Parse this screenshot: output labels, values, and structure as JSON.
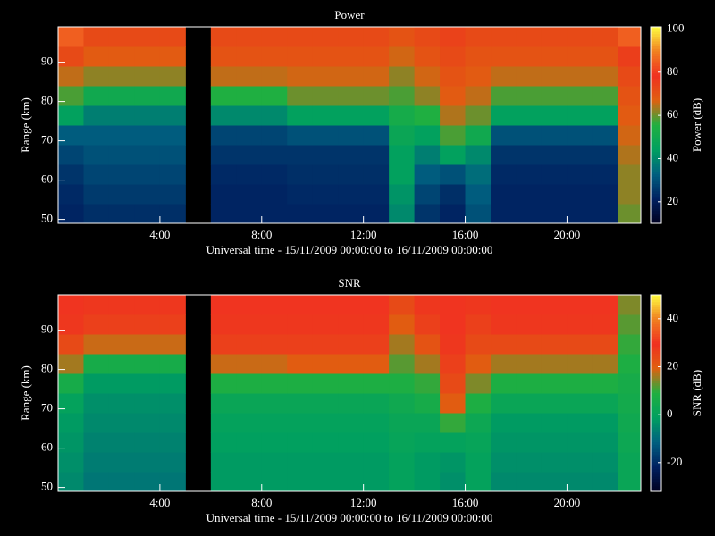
{
  "chart_data": [
    {
      "type": "heatmap",
      "title": "Power",
      "xlabel": "Universal time - 15/11/2009 00:00:00 to 16/11/2009 00:00:00",
      "ylabel": "Range (km)",
      "colorbar_label": "Power (dB)",
      "x": [
        0,
        1,
        2,
        3,
        4,
        5,
        6,
        7,
        8,
        9,
        10,
        11,
        12,
        13,
        14,
        15,
        16,
        17,
        18,
        19,
        20,
        21,
        22,
        22.9
      ],
      "y": [
        49,
        54,
        59,
        64,
        69,
        74,
        79,
        84,
        89,
        94,
        99
      ],
      "xlim": [
        0,
        22.9
      ],
      "ylim": [
        49,
        99
      ],
      "xticks": [
        {
          "value": 4,
          "label": "4:00"
        },
        {
          "value": 8,
          "label": "8:00"
        },
        {
          "value": 12,
          "label": "12:00"
        },
        {
          "value": 16,
          "label": "16:00"
        },
        {
          "value": 20,
          "label": "20:00"
        }
      ],
      "yticks": [
        50,
        60,
        70,
        80,
        90
      ],
      "clim": [
        10,
        101
      ],
      "cticks": [
        20,
        40,
        60,
        80,
        100
      ],
      "colormap": [
        "#000020",
        "#002060",
        "#006080",
        "#00a060",
        "#20b040",
        "#e06010",
        "#f03020",
        "#f08020",
        "#ffff40"
      ],
      "z": [
        [
          22,
          24,
          24,
          24,
          24,
          null,
          22,
          22,
          22,
          22,
          22,
          22,
          22,
          40,
          25,
          22,
          30,
          22,
          22,
          22,
          22,
          22,
          60
        ],
        [
          23,
          26,
          26,
          26,
          26,
          null,
          22,
          22,
          22,
          23,
          23,
          23,
          23,
          42,
          28,
          24,
          32,
          22,
          22,
          22,
          22,
          22,
          62
        ],
        [
          25,
          28,
          28,
          28,
          28,
          null,
          23,
          23,
          23,
          24,
          24,
          24,
          24,
          45,
          32,
          30,
          35,
          23,
          23,
          23,
          23,
          23,
          62
        ],
        [
          28,
          30,
          30,
          30,
          30,
          null,
          25,
          25,
          25,
          25,
          25,
          25,
          25,
          45,
          38,
          45,
          40,
          25,
          25,
          25,
          25,
          25,
          64
        ],
        [
          32,
          32,
          32,
          32,
          32,
          null,
          28,
          28,
          28,
          30,
          30,
          30,
          30,
          48,
          45,
          58,
          50,
          30,
          30,
          30,
          30,
          30,
          66
        ],
        [
          45,
          38,
          38,
          38,
          38,
          null,
          40,
          40,
          40,
          45,
          45,
          45,
          45,
          52,
          55,
          64,
          60,
          45,
          45,
          45,
          45,
          45,
          68
        ],
        [
          58,
          50,
          50,
          50,
          50,
          null,
          55,
          55,
          55,
          60,
          60,
          60,
          60,
          58,
          62,
          68,
          65,
          58,
          58,
          58,
          58,
          58,
          70
        ],
        [
          65,
          62,
          62,
          62,
          62,
          null,
          65,
          65,
          65,
          66,
          66,
          66,
          66,
          62,
          66,
          70,
          68,
          65,
          65,
          65,
          65,
          65,
          72
        ],
        [
          72,
          68,
          68,
          68,
          68,
          null,
          70,
          70,
          70,
          70,
          70,
          70,
          70,
          66,
          70,
          72,
          70,
          70,
          70,
          70,
          70,
          70,
          75
        ],
        [
          85,
          72,
          72,
          72,
          72,
          null,
          72,
          72,
          72,
          72,
          72,
          72,
          72,
          70,
          72,
          74,
          72,
          72,
          72,
          72,
          72,
          72,
          85
        ]
      ]
    },
    {
      "type": "heatmap",
      "title": "SNR",
      "xlabel": "Universal time - 15/11/2009 00:00:00 to 16/11/2009 00:00:00",
      "ylabel": "Range (km)",
      "colorbar_label": "SNR (dB)",
      "x": [
        0,
        1,
        2,
        3,
        4,
        5,
        6,
        7,
        8,
        9,
        10,
        11,
        12,
        13,
        14,
        15,
        16,
        17,
        18,
        19,
        20,
        21,
        22,
        22.9
      ],
      "y": [
        49,
        54,
        59,
        64,
        69,
        74,
        79,
        84,
        89,
        94,
        99
      ],
      "xlim": [
        0,
        22.9
      ],
      "ylim": [
        49,
        99
      ],
      "xticks": [
        {
          "value": 4,
          "label": "4:00"
        },
        {
          "value": 8,
          "label": "8:00"
        },
        {
          "value": 12,
          "label": "12:00"
        },
        {
          "value": 16,
          "label": "16:00"
        },
        {
          "value": 20,
          "label": "20:00"
        }
      ],
      "yticks": [
        50,
        60,
        70,
        80,
        90
      ],
      "clim": [
        -32,
        50
      ],
      "cticks": [
        -20,
        0,
        20,
        40
      ],
      "colormap": [
        "#000020",
        "#002060",
        "#006080",
        "#00a060",
        "#20b040",
        "#e06010",
        "#f03020",
        "#f08020",
        "#ffff40"
      ],
      "z": [
        [
          -5,
          -8,
          -8,
          -8,
          -8,
          null,
          -2,
          -2,
          -2,
          -2,
          -2,
          -2,
          -2,
          0,
          -2,
          -4,
          0,
          -5,
          -5,
          -5,
          -5,
          -5,
          2
        ],
        [
          -4,
          -7,
          -7,
          -7,
          -7,
          null,
          -2,
          -2,
          -2,
          -2,
          -2,
          -2,
          -2,
          0,
          -2,
          -3,
          0,
          -4,
          -4,
          -4,
          -4,
          -4,
          2
        ],
        [
          -3,
          -6,
          -6,
          -6,
          -6,
          null,
          -1,
          -1,
          -1,
          -1,
          -1,
          -1,
          -1,
          1,
          0,
          0,
          1,
          -3,
          -3,
          -3,
          -3,
          -3,
          3
        ],
        [
          -2,
          -5,
          -5,
          -5,
          -5,
          null,
          0,
          0,
          0,
          0,
          0,
          0,
          0,
          2,
          2,
          10,
          3,
          -2,
          -2,
          -2,
          -2,
          -2,
          4
        ],
        [
          0,
          -4,
          -4,
          -4,
          -4,
          null,
          2,
          2,
          2,
          2,
          2,
          2,
          2,
          4,
          6,
          20,
          8,
          2,
          2,
          2,
          2,
          2,
          5
        ],
        [
          6,
          -2,
          -2,
          -2,
          -2,
          null,
          8,
          8,
          8,
          8,
          8,
          8,
          8,
          8,
          10,
          24,
          14,
          8,
          8,
          8,
          8,
          8,
          6
        ],
        [
          16,
          6,
          6,
          6,
          6,
          null,
          18,
          18,
          18,
          20,
          20,
          20,
          20,
          12,
          16,
          26,
          20,
          16,
          16,
          16,
          16,
          16,
          8
        ],
        [
          24,
          18,
          18,
          18,
          18,
          null,
          26,
          26,
          26,
          26,
          26,
          26,
          26,
          16,
          22,
          28,
          24,
          24,
          24,
          24,
          24,
          24,
          10
        ],
        [
          28,
          26,
          26,
          26,
          26,
          null,
          28,
          28,
          28,
          28,
          28,
          28,
          28,
          20,
          26,
          30,
          26,
          28,
          28,
          28,
          28,
          28,
          12
        ],
        [
          30,
          28,
          28,
          28,
          28,
          null,
          30,
          30,
          30,
          30,
          30,
          30,
          30,
          24,
          28,
          30,
          28,
          30,
          30,
          30,
          30,
          30,
          14
        ]
      ]
    }
  ]
}
